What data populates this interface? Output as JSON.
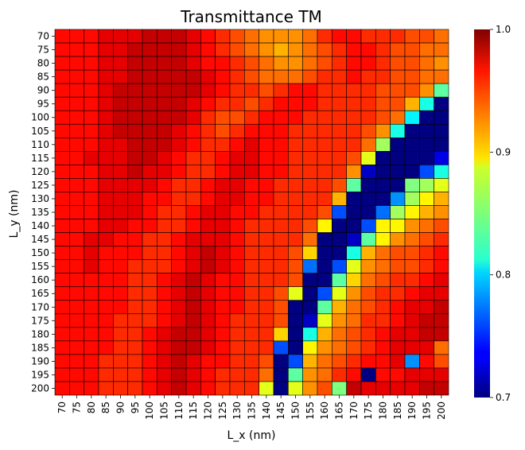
{
  "chart_data": {
    "type": "heatmap",
    "title": "Transmittance TM",
    "xlabel": "L_x (nm)",
    "ylabel": "L_y (nm)",
    "x": [
      "70",
      "75",
      "80",
      "85",
      "90",
      "95",
      "100",
      "105",
      "110",
      "115",
      "120",
      "125",
      "130",
      "135",
      "140",
      "145",
      "150",
      "155",
      "160",
      "165",
      "170",
      "175",
      "180",
      "185",
      "190",
      "195",
      "200"
    ],
    "y": [
      "70",
      "75",
      "80",
      "85",
      "90",
      "95",
      "100",
      "105",
      "110",
      "115",
      "120",
      "125",
      "130",
      "135",
      "140",
      "145",
      "150",
      "155",
      "160",
      "165",
      "170",
      "175",
      "180",
      "185",
      "190",
      "195",
      "200"
    ],
    "values": [
      [
        0.96,
        0.96,
        0.96,
        0.97,
        0.97,
        0.97,
        0.98,
        0.98,
        0.98,
        0.97,
        0.96,
        0.95,
        0.94,
        0.93,
        0.92,
        0.92,
        0.92,
        0.93,
        0.95,
        0.96,
        0.96,
        0.95,
        0.95,
        0.95,
        0.94,
        0.94,
        0.93
      ],
      [
        0.96,
        0.96,
        0.96,
        0.97,
        0.97,
        0.98,
        0.98,
        0.98,
        0.98,
        0.97,
        0.96,
        0.95,
        0.94,
        0.93,
        0.92,
        0.91,
        0.92,
        0.93,
        0.94,
        0.95,
        0.96,
        0.96,
        0.95,
        0.94,
        0.94,
        0.93,
        0.93
      ],
      [
        0.96,
        0.96,
        0.96,
        0.97,
        0.97,
        0.98,
        0.98,
        0.98,
        0.98,
        0.97,
        0.96,
        0.96,
        0.95,
        0.94,
        0.93,
        0.92,
        0.92,
        0.93,
        0.94,
        0.95,
        0.96,
        0.96,
        0.95,
        0.94,
        0.94,
        0.93,
        0.92
      ],
      [
        0.96,
        0.96,
        0.96,
        0.97,
        0.97,
        0.98,
        0.98,
        0.98,
        0.98,
        0.98,
        0.97,
        0.96,
        0.95,
        0.94,
        0.93,
        0.93,
        0.93,
        0.94,
        0.95,
        0.95,
        0.96,
        0.95,
        0.95,
        0.94,
        0.94,
        0.93,
        0.93
      ],
      [
        0.96,
        0.96,
        0.96,
        0.97,
        0.98,
        0.98,
        0.98,
        0.98,
        0.98,
        0.98,
        0.97,
        0.96,
        0.95,
        0.95,
        0.94,
        0.95,
        0.96,
        0.96,
        0.95,
        0.95,
        0.95,
        0.95,
        0.94,
        0.94,
        0.94,
        0.92,
        0.84
      ],
      [
        0.96,
        0.96,
        0.96,
        0.97,
        0.98,
        0.98,
        0.98,
        0.98,
        0.98,
        0.97,
        0.96,
        0.95,
        0.95,
        0.94,
        0.95,
        0.96,
        0.96,
        0.96,
        0.95,
        0.95,
        0.95,
        0.95,
        0.94,
        0.94,
        0.91,
        0.82,
        0.7
      ],
      [
        0.96,
        0.96,
        0.96,
        0.97,
        0.98,
        0.98,
        0.98,
        0.98,
        0.98,
        0.97,
        0.95,
        0.94,
        0.94,
        0.95,
        0.96,
        0.96,
        0.96,
        0.95,
        0.95,
        0.95,
        0.95,
        0.95,
        0.94,
        0.93,
        0.81,
        0.7,
        0.7
      ],
      [
        0.96,
        0.96,
        0.96,
        0.97,
        0.98,
        0.98,
        0.98,
        0.98,
        0.97,
        0.96,
        0.95,
        0.94,
        0.95,
        0.96,
        0.96,
        0.96,
        0.95,
        0.95,
        0.95,
        0.95,
        0.95,
        0.94,
        0.92,
        0.82,
        0.7,
        0.7,
        0.7
      ],
      [
        0.96,
        0.96,
        0.96,
        0.97,
        0.97,
        0.98,
        0.98,
        0.98,
        0.97,
        0.96,
        0.95,
        0.95,
        0.96,
        0.97,
        0.96,
        0.96,
        0.95,
        0.95,
        0.95,
        0.95,
        0.95,
        0.93,
        0.86,
        0.7,
        0.7,
        0.7,
        0.7
      ],
      [
        0.96,
        0.96,
        0.97,
        0.97,
        0.97,
        0.98,
        0.98,
        0.97,
        0.96,
        0.95,
        0.95,
        0.96,
        0.97,
        0.97,
        0.96,
        0.96,
        0.95,
        0.95,
        0.95,
        0.95,
        0.94,
        0.88,
        0.7,
        0.7,
        0.7,
        0.7,
        0.73
      ],
      [
        0.96,
        0.96,
        0.96,
        0.97,
        0.97,
        0.98,
        0.97,
        0.97,
        0.96,
        0.95,
        0.95,
        0.96,
        0.97,
        0.97,
        0.96,
        0.96,
        0.95,
        0.95,
        0.95,
        0.95,
        0.92,
        0.72,
        0.7,
        0.7,
        0.7,
        0.76,
        0.82
      ],
      [
        0.96,
        0.96,
        0.96,
        0.97,
        0.97,
        0.97,
        0.97,
        0.96,
        0.95,
        0.95,
        0.96,
        0.97,
        0.97,
        0.96,
        0.96,
        0.95,
        0.95,
        0.95,
        0.95,
        0.94,
        0.84,
        0.7,
        0.7,
        0.7,
        0.85,
        0.86,
        0.88
      ],
      [
        0.96,
        0.96,
        0.96,
        0.97,
        0.97,
        0.97,
        0.96,
        0.96,
        0.95,
        0.95,
        0.96,
        0.97,
        0.97,
        0.96,
        0.96,
        0.95,
        0.95,
        0.95,
        0.95,
        0.91,
        0.7,
        0.7,
        0.7,
        0.78,
        0.86,
        0.89,
        0.91
      ],
      [
        0.96,
        0.96,
        0.96,
        0.97,
        0.97,
        0.97,
        0.96,
        0.95,
        0.95,
        0.96,
        0.97,
        0.97,
        0.96,
        0.96,
        0.95,
        0.95,
        0.95,
        0.95,
        0.94,
        0.76,
        0.7,
        0.7,
        0.77,
        0.86,
        0.89,
        0.91,
        0.92
      ],
      [
        0.96,
        0.96,
        0.96,
        0.97,
        0.97,
        0.96,
        0.96,
        0.95,
        0.95,
        0.96,
        0.97,
        0.97,
        0.96,
        0.95,
        0.95,
        0.95,
        0.95,
        0.94,
        0.89,
        0.7,
        0.7,
        0.76,
        0.89,
        0.89,
        0.92,
        0.93,
        0.94
      ],
      [
        0.96,
        0.96,
        0.97,
        0.97,
        0.96,
        0.96,
        0.95,
        0.95,
        0.96,
        0.97,
        0.97,
        0.97,
        0.96,
        0.95,
        0.95,
        0.95,
        0.95,
        0.93,
        0.7,
        0.7,
        0.72,
        0.84,
        0.89,
        0.92,
        0.93,
        0.94,
        0.95
      ],
      [
        0.96,
        0.96,
        0.97,
        0.96,
        0.96,
        0.96,
        0.95,
        0.95,
        0.96,
        0.97,
        0.98,
        0.97,
        0.96,
        0.95,
        0.95,
        0.95,
        0.94,
        0.9,
        0.7,
        0.7,
        0.82,
        0.91,
        0.93,
        0.94,
        0.94,
        0.95,
        0.96
      ],
      [
        0.96,
        0.96,
        0.97,
        0.96,
        0.96,
        0.95,
        0.95,
        0.95,
        0.96,
        0.97,
        0.98,
        0.97,
        0.96,
        0.95,
        0.95,
        0.95,
        0.94,
        0.77,
        0.7,
        0.76,
        0.88,
        0.92,
        0.93,
        0.94,
        0.94,
        0.95,
        0.96
      ],
      [
        0.96,
        0.96,
        0.96,
        0.96,
        0.96,
        0.95,
        0.95,
        0.96,
        0.97,
        0.98,
        0.97,
        0.96,
        0.96,
        0.95,
        0.95,
        0.95,
        0.94,
        0.7,
        0.7,
        0.84,
        0.9,
        0.93,
        0.94,
        0.95,
        0.95,
        0.96,
        0.97
      ],
      [
        0.96,
        0.96,
        0.96,
        0.96,
        0.96,
        0.95,
        0.95,
        0.96,
        0.97,
        0.98,
        0.97,
        0.96,
        0.96,
        0.95,
        0.95,
        0.94,
        0.88,
        0.7,
        0.76,
        0.88,
        0.92,
        0.94,
        0.95,
        0.95,
        0.96,
        0.97,
        0.97
      ],
      [
        0.96,
        0.96,
        0.96,
        0.96,
        0.96,
        0.95,
        0.95,
        0.96,
        0.97,
        0.98,
        0.97,
        0.96,
        0.96,
        0.95,
        0.95,
        0.94,
        0.7,
        0.7,
        0.84,
        0.91,
        0.93,
        0.94,
        0.95,
        0.96,
        0.97,
        0.97,
        0.98
      ],
      [
        0.96,
        0.96,
        0.96,
        0.96,
        0.95,
        0.95,
        0.95,
        0.96,
        0.97,
        0.98,
        0.97,
        0.96,
        0.95,
        0.95,
        0.95,
        0.94,
        0.7,
        0.72,
        0.88,
        0.92,
        0.93,
        0.95,
        0.95,
        0.96,
        0.97,
        0.98,
        0.98
      ],
      [
        0.96,
        0.96,
        0.96,
        0.96,
        0.95,
        0.95,
        0.96,
        0.97,
        0.98,
        0.98,
        0.97,
        0.96,
        0.95,
        0.95,
        0.95,
        0.9,
        0.7,
        0.82,
        0.91,
        0.93,
        0.94,
        0.95,
        0.96,
        0.97,
        0.97,
        0.98,
        0.98
      ],
      [
        0.96,
        0.96,
        0.96,
        0.96,
        0.95,
        0.95,
        0.96,
        0.97,
        0.98,
        0.98,
        0.97,
        0.96,
        0.95,
        0.95,
        0.95,
        0.76,
        0.7,
        0.89,
        0.92,
        0.93,
        0.94,
        0.95,
        0.96,
        0.97,
        0.97,
        0.97,
        0.93
      ],
      [
        0.96,
        0.96,
        0.96,
        0.95,
        0.95,
        0.95,
        0.96,
        0.97,
        0.98,
        0.97,
        0.96,
        0.96,
        0.95,
        0.95,
        0.94,
        0.7,
        0.76,
        0.91,
        0.93,
        0.94,
        0.95,
        0.96,
        0.96,
        0.97,
        0.78,
        0.96,
        0.94
      ],
      [
        0.96,
        0.96,
        0.96,
        0.95,
        0.95,
        0.95,
        0.96,
        0.97,
        0.98,
        0.97,
        0.96,
        0.95,
        0.95,
        0.95,
        0.93,
        0.7,
        0.84,
        0.92,
        0.93,
        0.95,
        0.96,
        0.7,
        0.96,
        0.96,
        0.97,
        0.97,
        0.97
      ],
      [
        0.96,
        0.96,
        0.96,
        0.95,
        0.95,
        0.95,
        0.96,
        0.97,
        0.98,
        0.97,
        0.96,
        0.95,
        0.95,
        0.95,
        0.88,
        0.7,
        0.88,
        0.92,
        0.94,
        0.85,
        0.98,
        0.97,
        0.97,
        0.97,
        0.97,
        0.98,
        0.98
      ]
    ],
    "colorbar": {
      "min": 0.7,
      "max": 1.0,
      "ticks": [
        0.7,
        0.8,
        0.9,
        1.0
      ],
      "tick_labels": [
        "0.7",
        "0.8",
        "0.9",
        "1.0"
      ],
      "colormap": "jet"
    },
    "grid": true,
    "cell_border_color": "#000000"
  }
}
